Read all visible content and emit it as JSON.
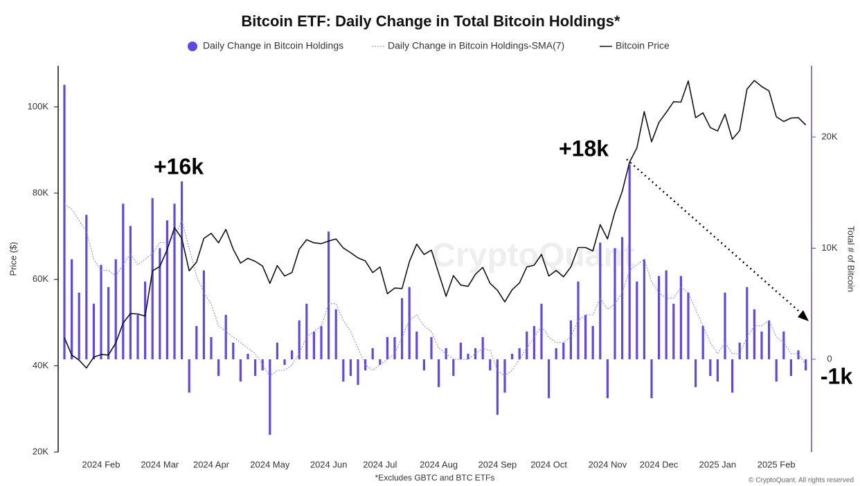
{
  "chart_data": {
    "type": "combo",
    "title": "Bitcoin ETF: Daily Change in Total Bitcoin Holdings*",
    "footnote": "*Excludes GBTC and BTC ETFs",
    "credit": "© CryptoQuant. All rights reserved",
    "watermark": "CryptoQuant",
    "ylabel": "Price ($)",
    "y2label": "Total # of Bitcoin",
    "annotations": [
      "+16k",
      "+18k",
      "-1k"
    ],
    "categories": [
      null,
      null,
      null,
      null,
      null,
      "2024 Feb",
      null,
      null,
      null,
      null,
      null,
      null,
      null,
      "2024 Mar",
      null,
      null,
      null,
      null,
      null,
      null,
      "2024 Apr",
      null,
      null,
      null,
      null,
      null,
      null,
      null,
      "2024 May",
      null,
      null,
      null,
      null,
      null,
      null,
      null,
      "2024 Jun",
      null,
      null,
      null,
      null,
      null,
      null,
      "2024 Jul",
      null,
      null,
      null,
      null,
      null,
      null,
      null,
      "2024 Aug",
      null,
      null,
      null,
      null,
      null,
      null,
      null,
      "2024 Sep",
      null,
      null,
      null,
      null,
      null,
      null,
      "2024 Oct",
      null,
      null,
      null,
      null,
      null,
      null,
      null,
      "2024 Nov",
      null,
      null,
      null,
      null,
      null,
      null,
      "2024 Dec",
      null,
      null,
      null,
      null,
      null,
      null,
      null,
      "2025 Jan",
      null,
      null,
      null,
      null,
      null,
      null,
      null,
      "2025 Feb",
      null,
      null,
      null,
      null
    ],
    "series": [
      {
        "name": "Daily Change in Bitcoin Holdings",
        "kind": "bar",
        "axis": "y2",
        "color": "#6246e6",
        "values": [
          24700,
          9000,
          6000,
          13000,
          5000,
          8500,
          6500,
          9000,
          14000,
          12000,
          4000,
          7000,
          14500,
          10000,
          12500,
          14000,
          16000,
          -3000,
          3000,
          8000,
          2000,
          -1500,
          4000,
          1500,
          -2000,
          500,
          -1500,
          -1000,
          -6800,
          1500,
          -500,
          800,
          3500,
          5000,
          2500,
          3000,
          11500,
          4500,
          -2000,
          -1500,
          -2300,
          -1000,
          1000,
          -500,
          2000,
          2000,
          5500,
          6500,
          2500,
          -1000,
          2000,
          -2500,
          1000,
          -1500,
          1500,
          500,
          1000,
          2000,
          -1000,
          -5000,
          -3000,
          500,
          1000,
          2500,
          3000,
          5000,
          -3500,
          1000,
          1500,
          3500,
          7000,
          4000,
          3000,
          10500,
          -3500,
          10000,
          11000,
          17500,
          7000,
          9000,
          -3500,
          7500,
          8000,
          5000,
          7500,
          6000,
          -2500,
          3000,
          -1500,
          -2000,
          6000,
          -3000,
          1500,
          6500,
          4500,
          2500,
          3500,
          -2000,
          2500,
          -1500,
          800,
          -1000
        ]
      },
      {
        "name": "Daily Change in Bitcoin Holdings-SMA(7)",
        "kind": "dotted",
        "axis": "y2",
        "color": "#8a7ae0",
        "values": [
          14000,
          13500,
          12500,
          11500,
          9000,
          8000,
          8000,
          7500,
          8500,
          9500,
          8500,
          9000,
          9500,
          10500,
          10500,
          11000,
          12500,
          10000,
          7500,
          6000,
          5000,
          3000,
          2500,
          2000,
          1500,
          1000,
          500,
          -500,
          -1500,
          -1000,
          -1000,
          -500,
          500,
          2000,
          2500,
          3000,
          5000,
          5000,
          3500,
          2500,
          1000,
          -500,
          -1000,
          -500,
          0,
          500,
          2000,
          3500,
          4000,
          3000,
          2500,
          1000,
          500,
          0,
          0,
          0,
          500,
          1000,
          800,
          -1000,
          -1500,
          -1000,
          0,
          1000,
          2000,
          3000,
          2000,
          1500,
          1500,
          2000,
          3500,
          4000,
          4000,
          5500,
          4500,
          5000,
          6000,
          8000,
          8500,
          9000,
          7000,
          6000,
          5500,
          5500,
          6500,
          6000,
          4500,
          3000,
          1500,
          500,
          1500,
          500,
          500,
          2000,
          3000,
          3000,
          3500,
          2000,
          1500,
          500,
          500,
          -500
        ]
      },
      {
        "name": "Bitcoin Price",
        "kind": "line",
        "color": "#111111",
        "values": [
          46500,
          42500,
          41300,
          39500,
          42000,
          42600,
          42500,
          45300,
          49900,
          52100,
          52000,
          51500,
          62000,
          63000,
          66900,
          72000,
          69500,
          62000,
          64000,
          69500,
          70700,
          68500,
          71600,
          67000,
          63800,
          64900,
          64200,
          63100,
          59100,
          63200,
          60800,
          61600,
          67000,
          69200,
          68500,
          68300,
          68900,
          69400,
          67300,
          66200,
          65000,
          64300,
          61600,
          62900,
          56700,
          58000,
          57900,
          64100,
          68200,
          65800,
          66800,
          61400,
          56100,
          60900,
          58700,
          58400,
          61200,
          62800,
          59100,
          57500,
          54800,
          57600,
          59200,
          62900,
          63300,
          65800,
          60800,
          62100,
          60600,
          62900,
          67400,
          67400,
          66600,
          72700,
          69400,
          75600,
          80400,
          87200,
          90500,
          98900,
          91900,
          96400,
          98700,
          101200,
          101100,
          106000,
          97500,
          98600,
          95200,
          94400,
          98300,
          92500,
          94500,
          104100,
          106100,
          104700,
          103700,
          97700,
          96600,
          97400,
          97500,
          95800
        ]
      }
    ],
    "ylim": [
      20000,
      110000
    ],
    "yticks": [
      {
        "value": 20000,
        "label": "20K"
      },
      {
        "value": 40000,
        "label": "40K"
      },
      {
        "value": 60000,
        "label": "60K"
      },
      {
        "value": 80000,
        "label": "80K"
      },
      {
        "value": 100000,
        "label": "100K"
      }
    ],
    "y2lim": [
      -8350,
      26600
    ],
    "y2ticks": [
      0,
      {
        "value": 10000,
        "label": "10K"
      },
      {
        "value": 20000,
        "label": "20K"
      }
    ]
  }
}
